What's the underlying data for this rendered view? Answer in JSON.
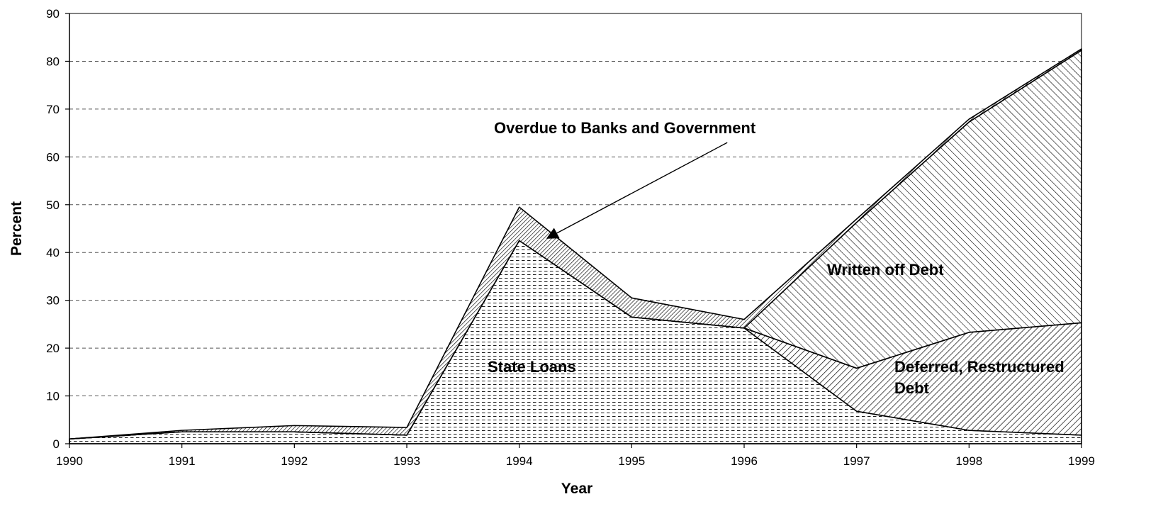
{
  "chart_data": {
    "type": "area",
    "stacked": true,
    "x": [
      1990,
      1991,
      1992,
      1993,
      1994,
      1995,
      1996,
      1997,
      1998,
      1999
    ],
    "series": [
      {
        "name": "State Loans",
        "values": [
          1,
          2.5,
          2.5,
          1.8,
          42.5,
          26.5,
          24.2,
          6.8,
          2.8,
          1.8
        ]
      },
      {
        "name": "Deferred, Restructured Debt",
        "values": [
          0,
          0,
          0,
          0,
          0,
          0,
          0,
          9,
          20.5,
          23.5
        ]
      },
      {
        "name": "Written off Debt",
        "values": [
          0,
          0,
          0,
          0,
          0,
          0,
          0,
          30.5,
          44,
          57
        ]
      },
      {
        "name": "Overdue to Banks and Government",
        "values": [
          0,
          0.3,
          1.3,
          1.6,
          7,
          4,
          1.8,
          0.7,
          0.6,
          0.3
        ]
      }
    ],
    "series_label_text": {
      "state_loans": "State Loans",
      "deferred_line1": "Deferred, Restructured",
      "deferred_line2": "Debt",
      "written_off": "Written off Debt",
      "overdue": "Overdue to Banks and Government"
    },
    "title": "",
    "xlabel": "Year",
    "ylabel": "Percent",
    "xlim": [
      1990,
      1999
    ],
    "ylim": [
      0,
      90
    ],
    "yticks": [
      0,
      10,
      20,
      30,
      40,
      50,
      60,
      70,
      80,
      90
    ],
    "xticks": [
      1990,
      1991,
      1992,
      1993,
      1994,
      1995,
      1996,
      1997,
      1998,
      1999
    ],
    "grid": "horizontal dashed",
    "legend": "none",
    "arrow": {
      "from": [
        1995.85,
        63
      ],
      "to": [
        1994.25,
        43
      ]
    },
    "colors": {
      "ink": "#000000",
      "grid": "#555555",
      "background": "#ffffff"
    }
  }
}
